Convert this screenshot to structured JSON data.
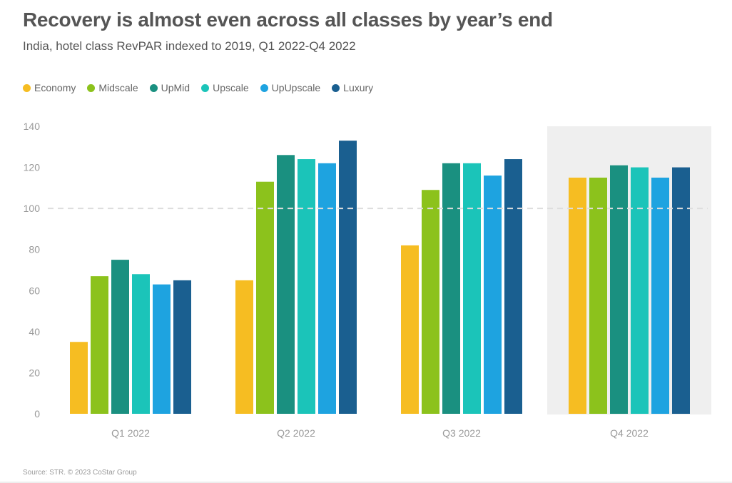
{
  "title": "Recovery is almost even across all classes by year’s end",
  "subtitle": "India, hotel class RevPAR indexed to 2019, Q1 2022-Q4 2022",
  "source": "Source: STR. © 2023 CoStar Group",
  "chart_data": {
    "type": "bar",
    "categories": [
      "Q1 2022",
      "Q2 2022",
      "Q3 2022",
      "Q4 2022"
    ],
    "series": [
      {
        "name": "Economy",
        "color": "#f6bd22",
        "values": [
          35,
          65,
          82,
          115
        ]
      },
      {
        "name": "Midscale",
        "color": "#8cc21c",
        "values": [
          67,
          113,
          109,
          115
        ]
      },
      {
        "name": "UpMid",
        "color": "#1a9080",
        "values": [
          75,
          126,
          122,
          121
        ]
      },
      {
        "name": "Upscale",
        "color": "#1bc4b9",
        "values": [
          68,
          124,
          122,
          120
        ]
      },
      {
        "name": "UpUpscale",
        "color": "#1ea3e0",
        "values": [
          63,
          122,
          116,
          115
        ]
      },
      {
        "name": "Luxury",
        "color": "#1a5f90",
        "values": [
          65,
          133,
          124,
          120
        ]
      }
    ],
    "ylim": [
      0,
      140
    ],
    "yticks": [
      "0",
      "20",
      "40",
      "60",
      "80",
      "100",
      "120",
      "140"
    ],
    "reference_line": 100,
    "highlighted_category": "Q4 2022",
    "legend_position": "top-left",
    "grid": false
  }
}
